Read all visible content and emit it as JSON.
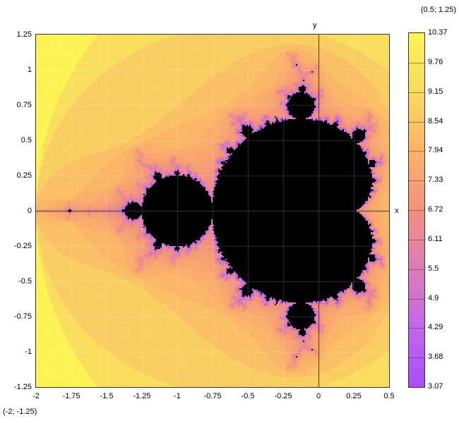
{
  "window": {
    "background": "#ffffff"
  },
  "plot": {
    "corner_label_top_right": "(0.5; 1.25)",
    "corner_label_bottom_left": "(-2; -1.25)",
    "x_axis_label": "x",
    "y_axis_label": "y",
    "x_tick_labels": [
      "-2",
      "-1.75",
      "-1.5",
      "-1.25",
      "-1",
      "-0.75",
      "-0.5",
      "-0.25",
      "0",
      "0.25",
      "0.5"
    ],
    "y_tick_labels": [
      "1.25",
      "1",
      "0.75",
      "0.5",
      "0.25",
      "0",
      "-0.25",
      "-0.5",
      "-0.75",
      "-1",
      "-1.25"
    ]
  },
  "colorbar": {
    "tick_labels": [
      "10.37",
      "9.76",
      "9.15",
      "8.54",
      "7.94",
      "7.33",
      "6.72",
      "6.11",
      "5.5",
      "4.9",
      "4.29",
      "3.68",
      "3.07"
    ],
    "border_color": "#333333"
  },
  "chart_data": {
    "type": "heatmap",
    "subtype": "mandelbrot-set-escape-time",
    "title": "",
    "xlabel": "x",
    "ylabel": "y",
    "x_range": [
      -2,
      0.5
    ],
    "y_range": [
      -1.25,
      1.25
    ],
    "grid": true,
    "grid_step": 0.25,
    "value_range": [
      3.07,
      10.37
    ],
    "colorbar_values": [
      10.37,
      9.76,
      9.15,
      8.54,
      7.94,
      7.33,
      6.72,
      6.11,
      5.5,
      4.9,
      4.29,
      3.68,
      3.07
    ],
    "interior_color": "#000000",
    "palette_stops": [
      {
        "t": 0.0,
        "color": "#fdf355"
      },
      {
        "t": 0.1667,
        "color": "#f8da60"
      },
      {
        "t": 0.3333,
        "color": "#fbb269"
      },
      {
        "t": 0.5,
        "color": "#f2917f"
      },
      {
        "t": 0.6667,
        "color": "#dc7cb8"
      },
      {
        "t": 0.8333,
        "color": "#c167e8"
      },
      {
        "t": 1.0,
        "color": "#a94ef7"
      }
    ],
    "max_iterations": 200,
    "log2_value_span": 7.3,
    "axis_color": "#3a3a3a",
    "gridline_color": "rgba(255,255,255,0.18)"
  }
}
